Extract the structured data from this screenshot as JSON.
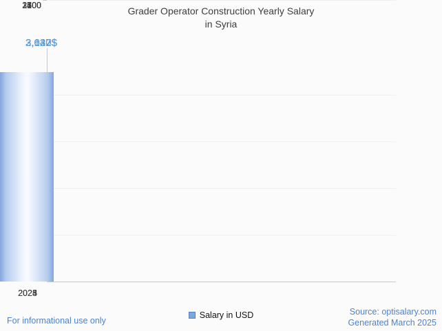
{
  "title_lines": {
    "line1": "Grader Operator Construction Yearly Salary",
    "line2": "in Syria"
  },
  "chart_data": {
    "type": "bar",
    "title": "Grader Operator Construction Yearly Salary in Syria",
    "categories": [
      "2023",
      "2024",
      "2025"
    ],
    "values": [
      2622,
      3040,
      3137
    ],
    "value_labels": [
      "2,622$",
      "3,040$",
      "3,137$"
    ],
    "series": [
      {
        "name": "Salary in USD",
        "values": [
          2622,
          3040,
          3137
        ]
      }
    ],
    "xlabel": "",
    "ylabel": "",
    "ylim": [
      0,
      3500
    ],
    "yticks": [
      700,
      1400,
      2100,
      2800,
      3500
    ],
    "ytick_labels": [
      "3500",
      "2800",
      "2100",
      "1400",
      "700"
    ],
    "grid": "horizontal-faint",
    "legend_position": "bottom-center",
    "bar_edge_color": "#84a7de",
    "bar_center_color": "#f6faff",
    "value_label_color": "#5b9bd5"
  },
  "legend": {
    "label": "Salary in USD",
    "swatch_color": "#7ba6de"
  },
  "footer": {
    "left_note": "For informational use only",
    "source": "Source: optisalary.com",
    "generated": "Generated March 2025",
    "link_color": "#4d82cc"
  }
}
